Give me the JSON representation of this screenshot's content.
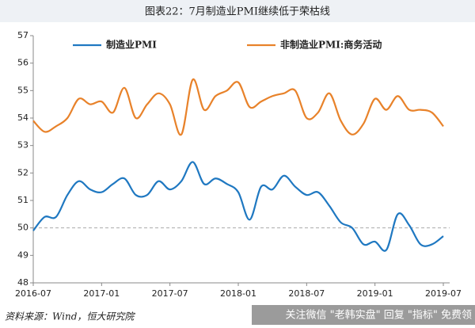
{
  "chart_data": {
    "type": "line",
    "title": "图表22：7月制造业PMI继续低于荣枯线",
    "source": "资料来源：Wind，恒大研究院",
    "watermark": "关注微信 \"老韩实盘\" 回复 \"指标\" 免费领",
    "categories": [
      "2016-07",
      null,
      null,
      null,
      null,
      null,
      "2017-01",
      null,
      null,
      null,
      null,
      null,
      "2017-07",
      null,
      null,
      null,
      null,
      null,
      "2018-01",
      null,
      null,
      null,
      null,
      null,
      "2018-07",
      null,
      null,
      null,
      null,
      null,
      "2019-01",
      null,
      null,
      null,
      null,
      null,
      "2019-07"
    ],
    "series": [
      {
        "name": "制造业PMI",
        "color": "#1f78c1",
        "values": [
          49.9,
          50.4,
          50.4,
          51.2,
          51.7,
          51.4,
          51.3,
          51.6,
          51.8,
          51.2,
          51.2,
          51.7,
          51.4,
          51.7,
          52.4,
          51.6,
          51.8,
          51.6,
          51.3,
          50.3,
          51.5,
          51.4,
          51.9,
          51.5,
          51.2,
          51.3,
          50.8,
          50.2,
          50.0,
          49.4,
          49.5,
          49.2,
          50.5,
          50.1,
          49.4,
          49.4,
          49.7
        ]
      },
      {
        "name": "非制造业PMI:商务活动",
        "color": "#e8822a",
        "values": [
          53.9,
          53.5,
          53.7,
          54.0,
          54.7,
          54.5,
          54.6,
          54.2,
          55.1,
          54.0,
          54.5,
          54.9,
          54.5,
          53.4,
          55.4,
          54.3,
          54.8,
          55.0,
          55.3,
          54.4,
          54.6,
          54.8,
          54.9,
          55.0,
          54.0,
          54.2,
          54.9,
          53.9,
          53.4,
          53.8,
          54.7,
          54.3,
          54.8,
          54.3,
          54.3,
          54.2,
          53.7
        ]
      }
    ],
    "ylim": [
      48,
      57
    ],
    "yticks": [
      48,
      49,
      50,
      51,
      52,
      53,
      54,
      55,
      56,
      57
    ],
    "reference_line": 50,
    "grid": false
  }
}
